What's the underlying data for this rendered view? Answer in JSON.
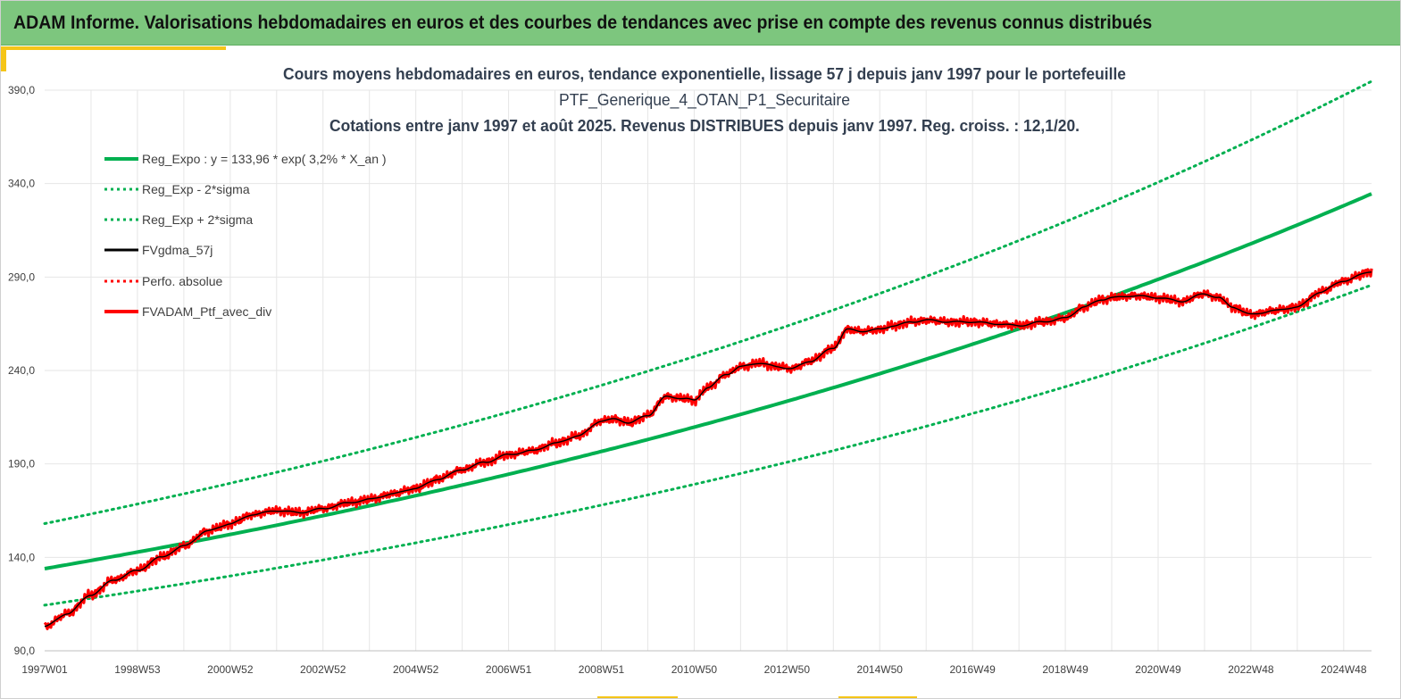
{
  "header": {
    "title": "ADAM Informe. Valorisations hebdomadaires en euros et des courbes de tendances avec prise en compte des revenus connus distribués"
  },
  "colors": {
    "header_bg": "#7dc67e",
    "accent": "#f5c518",
    "reg_expo": "#00b050",
    "fvgdma": "#000000",
    "perfo": "#ff0000",
    "fvadam": "#ff0000",
    "grid": "#e6e6e6",
    "title_text": "#333f50"
  },
  "chart_data": {
    "type": "line",
    "title_lines": [
      "Cours moyens hebdomadaires  en euros, tendance exponentielle, lissage 57 j depuis janv 1997 pour le portefeuille",
      "PTF_Generique_4_OTAN_P1_Securitaire",
      "Cotations  entre janv 1997 et août 2025. Revenus DISTRIBUES depuis janv 1997. Reg. croiss. : 12,1/20."
    ],
    "xlabel": "",
    "ylabel": "",
    "ylim": [
      90,
      390
    ],
    "y_ticks": [
      "390,0",
      "340,0",
      "290,0",
      "240,0",
      "190,0",
      "140,0",
      "90,0"
    ],
    "y_tick_values": [
      390,
      340,
      290,
      240,
      190,
      140,
      90
    ],
    "x_range_years": [
      1997.0,
      2025.6
    ],
    "x_tick_labels": [
      "1997W01",
      "1998W53",
      "2000W52",
      "2002W52",
      "2004W52",
      "2006W51",
      "2008W51",
      "2010W50",
      "2012W50",
      "2014W50",
      "2016W49",
      "2018W49",
      "2020W49",
      "2022W48",
      "2024W48"
    ],
    "x_tick_years": [
      1997.0,
      1999.0,
      2001.0,
      2003.0,
      2005.0,
      2007.0,
      2009.0,
      2011.0,
      2013.0,
      2015.0,
      2017.0,
      2019.0,
      2021.0,
      2023.0,
      2025.0
    ],
    "grid": true,
    "legend_placement": "top-left",
    "regression": {
      "a": 133.96,
      "rate": 0.032,
      "sigma_minus_factor": 0.854,
      "sigma_plus_factor": 1.18
    },
    "series": [
      {
        "name": "Reg_Expo : y = 133,96 * exp( 3,2% *  X_an )",
        "style": "solid-thick",
        "color": "#00b050"
      },
      {
        "name": "Reg_Exp - 2*sigma",
        "style": "dotted",
        "color": "#00b050"
      },
      {
        "name": "Reg_Exp + 2*sigma",
        "style": "dotted",
        "color": "#00b050"
      },
      {
        "name": "FVgdma_57j",
        "style": "solid",
        "color": "#000000"
      },
      {
        "name": "Perfo. absolue",
        "style": "dotted",
        "color": "#ff0000"
      },
      {
        "name": "FVADAM_Ptf_avec_div",
        "style": "solid-thick",
        "color": "#ff0000"
      }
    ],
    "price_anchors": {
      "x": [
        1997.0,
        1997.5,
        1998.0,
        1998.5,
        1999.0,
        1999.5,
        2000.0,
        2000.5,
        2001.0,
        2001.5,
        2002.0,
        2002.5,
        2003.0,
        2003.5,
        2004.0,
        2004.5,
        2005.0,
        2005.5,
        2006.0,
        2006.5,
        2007.0,
        2007.5,
        2008.0,
        2008.5,
        2009.0,
        2009.3,
        2009.6,
        2010.0,
        2010.4,
        2010.8,
        2011.0,
        2011.3,
        2011.7,
        2012.0,
        2012.4,
        2012.8,
        2013.1,
        2013.5,
        2014.0,
        2014.3,
        2014.6,
        2015.0,
        2015.3,
        2015.7,
        2016.0,
        2016.5,
        2017.0,
        2017.5,
        2018.0,
        2018.5,
        2019.0,
        2019.4,
        2019.8,
        2020.0,
        2020.5,
        2021.0,
        2021.5,
        2022.0,
        2022.3,
        2022.6,
        2023.0,
        2023.5,
        2024.0,
        2024.5,
        2025.0,
        2025.6
      ],
      "y": [
        103,
        110,
        120,
        128,
        133,
        140,
        146,
        154,
        158,
        163,
        165,
        164,
        166,
        169,
        171,
        174,
        177,
        182,
        187,
        191,
        195,
        197,
        201,
        205,
        213,
        214,
        212,
        216,
        226,
        225,
        224,
        231,
        238,
        242,
        244,
        242,
        241,
        245,
        252,
        262,
        261,
        262,
        264,
        266,
        267,
        266,
        266,
        265,
        264,
        266,
        268,
        274,
        278,
        279,
        280,
        279,
        277,
        281,
        279,
        274,
        270,
        272,
        274,
        282,
        288,
        293
      ]
    }
  },
  "legend": {
    "items": [
      "Reg_Expo : y = 133,96 * exp( 3,2% *  X_an )",
      "Reg_Exp - 2*sigma",
      "Reg_Exp + 2*sigma",
      "FVgdma_57j",
      "Perfo. absolue",
      "FVADAM_Ptf_avec_div"
    ]
  }
}
